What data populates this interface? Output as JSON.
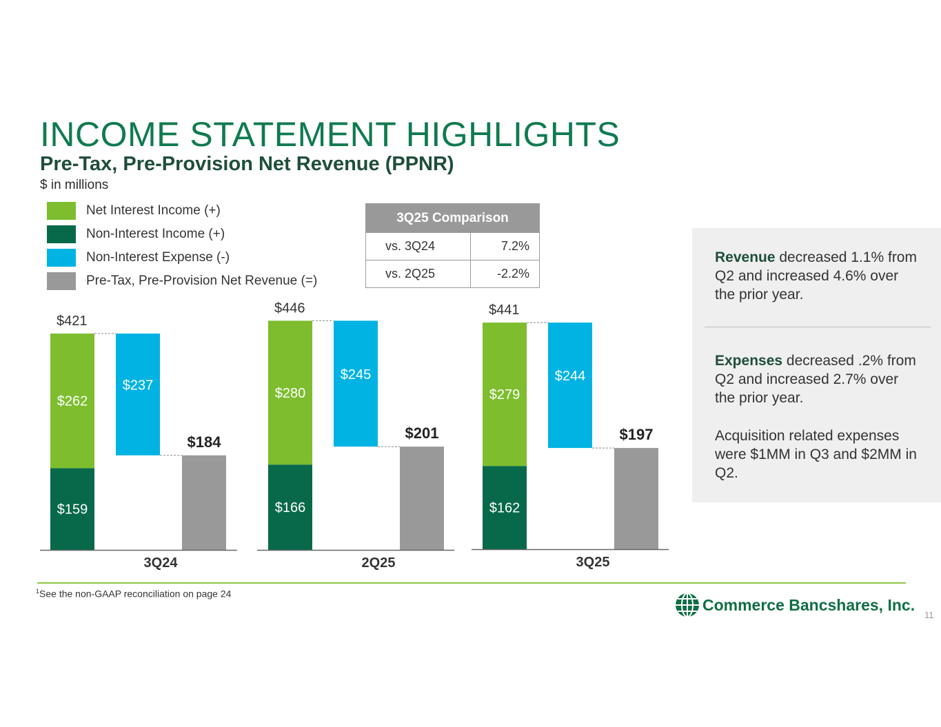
{
  "header": {
    "title": "INCOME STATEMENT HIGHLIGHTS",
    "subtitle": "Pre-Tax, Pre-Provision Net Revenue (PPNR)",
    "units": "$ in millions"
  },
  "legend": [
    {
      "label": "Net Interest Income (+)",
      "color": "#7dbd2e"
    },
    {
      "label": "Non-Interest Income (+)",
      "color": "#08694a"
    },
    {
      "label": "Non-Interest Expense (-)",
      "color": "#00b3e3"
    },
    {
      "label": "Pre-Tax, Pre-Provision Net Revenue (=)",
      "color": "#999999"
    }
  ],
  "comparison_table": {
    "header": "3Q25 Comparison",
    "rows": [
      {
        "label": "vs. 3Q24",
        "value": "7.2%"
      },
      {
        "label": "vs. 2Q25",
        "value": "-2.2%"
      }
    ]
  },
  "chart_data": {
    "type": "bar",
    "subtype": "waterfall",
    "categories": [
      "3Q24",
      "2Q25",
      "3Q25"
    ],
    "series": [
      {
        "name": "Non-Interest Income (+)",
        "values": [
          159,
          166,
          162
        ]
      },
      {
        "name": "Net Interest Income (+)",
        "values": [
          262,
          280,
          279
        ]
      },
      {
        "name": "Non-Interest Expense (-)",
        "values": [
          237,
          245,
          244
        ]
      },
      {
        "name": "Pre-Tax, Pre-Provision Net Revenue (=)",
        "values": [
          184,
          201,
          197
        ]
      }
    ],
    "totals": [
      421,
      446,
      441
    ],
    "labels": {
      "non_interest_income": [
        "$159",
        "$166",
        "$162"
      ],
      "net_interest_income": [
        "$262",
        "$280",
        "$279"
      ],
      "non_interest_expense": [
        "$237",
        "$245",
        "$244"
      ],
      "ppnr": [
        "$184",
        "$201",
        "$197"
      ],
      "totals": [
        "$421",
        "$446",
        "$441"
      ]
    },
    "colors": {
      "non_interest_income": "#08694a",
      "net_interest_income": "#7dbd2e",
      "non_interest_expense": "#00b3e3",
      "ppnr": "#999999"
    }
  },
  "side_panel": {
    "revenue_bold": "Revenue",
    "revenue_text": " decreased 1.1% from Q2 and increased 4.6% over the prior year.",
    "expenses_bold": "Expenses",
    "expenses_text": " decreased .2% from Q2 and increased 2.7% over the prior year.",
    "acquisition_text": "Acquisition related expenses were $1MM in Q3 and $2MM in Q2."
  },
  "footer": {
    "footnote_marker": "1",
    "footnote": "See the non-GAAP reconciliation on page 24",
    "logo_text": "Commerce Bancshares, Inc.",
    "page_number": "11"
  }
}
